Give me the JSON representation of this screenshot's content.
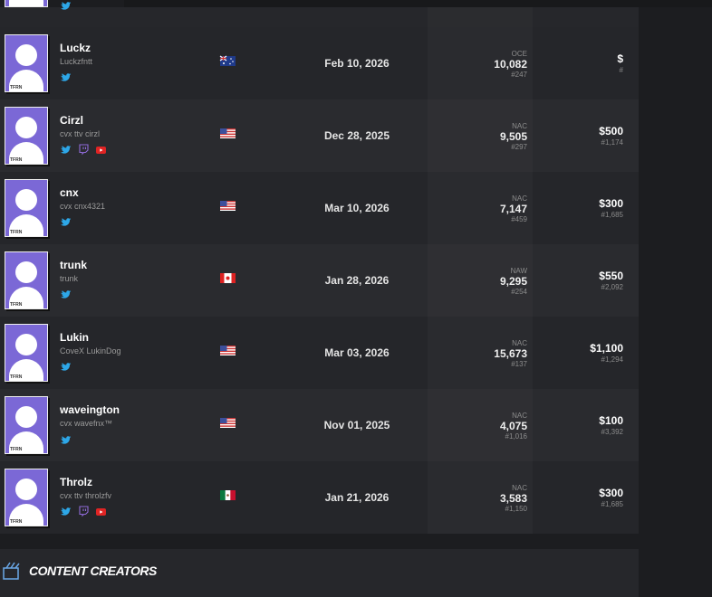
{
  "avatar_badge": "TFRN",
  "players": [
    {
      "name": "Luckz",
      "handle": "Luckzfntt",
      "date": "Feb 10, 2026",
      "region": "OCE",
      "points": "10,082",
      "points_rank": "#247",
      "earnings": "$",
      "earnings_rank": "#"
    },
    {
      "name": "Cirzl",
      "handle": "cvx ttv cirzl",
      "date": "Dec 28, 2025",
      "region": "NAC",
      "points": "9,505",
      "points_rank": "#297",
      "earnings": "$500",
      "earnings_rank": "#1,174"
    },
    {
      "name": "cnx",
      "handle": "cvx cnx4321",
      "date": "Mar 10, 2026",
      "region": "NAC",
      "points": "7,147",
      "points_rank": "#459",
      "earnings": "$300",
      "earnings_rank": "#1,685"
    },
    {
      "name": "trunk",
      "handle": "trunk",
      "date": "Jan 28, 2026",
      "region": "NAW",
      "points": "9,295",
      "points_rank": "#254",
      "earnings": "$550",
      "earnings_rank": "#2,092"
    },
    {
      "name": "Lukin",
      "handle": "CoveX LukinDog",
      "date": "Mar 03, 2026",
      "region": "NAC",
      "points": "15,673",
      "points_rank": "#137",
      "earnings": "$1,100",
      "earnings_rank": "#1,294"
    },
    {
      "name": "waveington",
      "handle": "cvx wavefnx™",
      "date": "Nov 01, 2025",
      "region": "NAC",
      "points": "4,075",
      "points_rank": "#1,016",
      "earnings": "$100",
      "earnings_rank": "#3,392"
    },
    {
      "name": "Throlz",
      "handle": "cvx ttv throlzfv",
      "date": "Jan 21, 2026",
      "region": "NAC",
      "points": "3,583",
      "points_rank": "#1,150",
      "earnings": "$300",
      "earnings_rank": "#1,685"
    }
  ],
  "section_title": "CONTENT CREATORS"
}
